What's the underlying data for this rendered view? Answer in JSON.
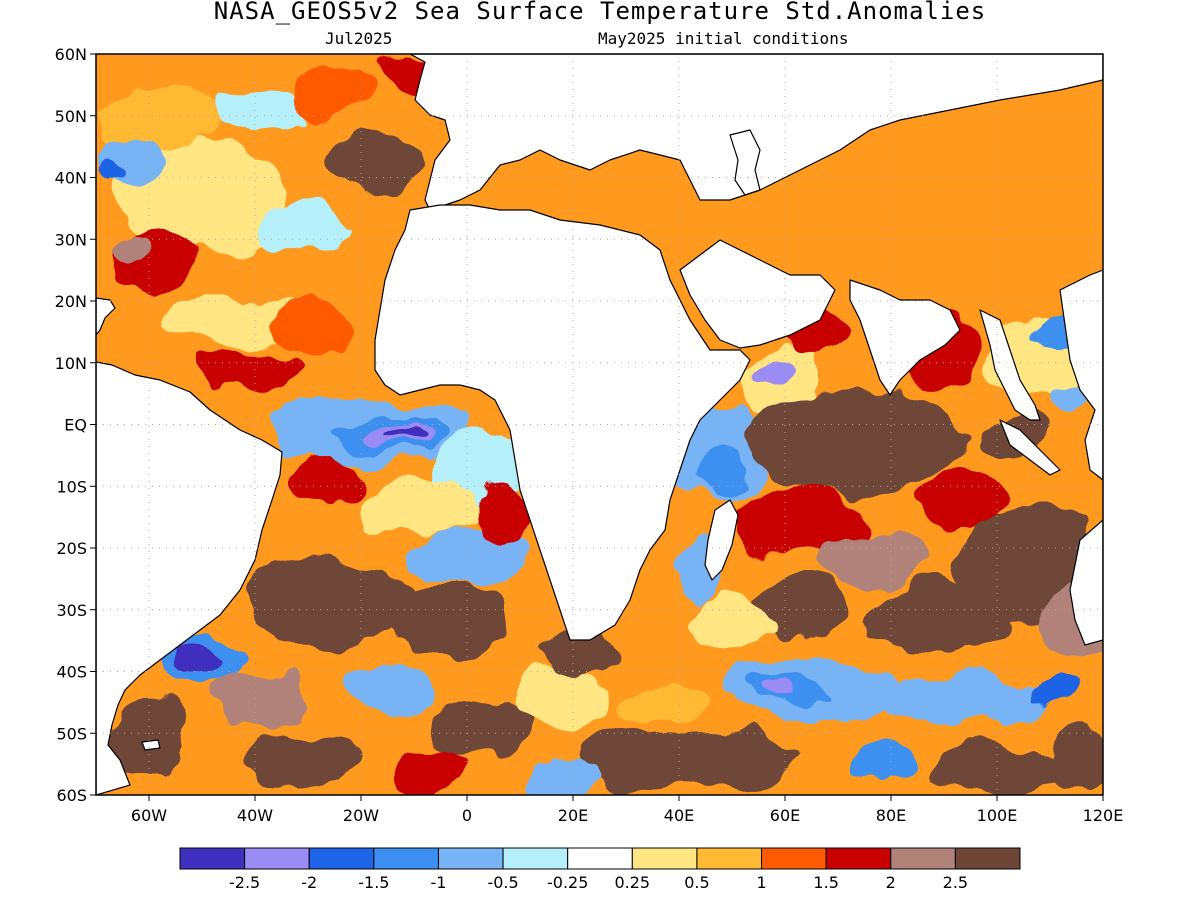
{
  "title": "NASA_GEOS5v2 Sea Surface Temperature Std.Anomalies",
  "subtitle_left": "Jul2025",
  "subtitle_right": "May2025 initial conditions",
  "map": {
    "lon_range": [
      -70,
      120
    ],
    "lat_range": [
      -60,
      60
    ],
    "lon_ticks": [
      {
        "v": -60,
        "label": "60W"
      },
      {
        "v": -40,
        "label": "40W"
      },
      {
        "v": -20,
        "label": "20W"
      },
      {
        "v": 0,
        "label": "0"
      },
      {
        "v": 20,
        "label": "20E"
      },
      {
        "v": 40,
        "label": "40E"
      },
      {
        "v": 60,
        "label": "60E"
      },
      {
        "v": 80,
        "label": "80E"
      },
      {
        "v": 100,
        "label": "100E"
      },
      {
        "v": 120,
        "label": "120E"
      }
    ],
    "lat_ticks": [
      {
        "v": 60,
        "label": "60N"
      },
      {
        "v": 50,
        "label": "50N"
      },
      {
        "v": 40,
        "label": "40N"
      },
      {
        "v": 30,
        "label": "30N"
      },
      {
        "v": 20,
        "label": "20N"
      },
      {
        "v": 10,
        "label": "10N"
      },
      {
        "v": 0,
        "label": "EQ"
      },
      {
        "v": -10,
        "label": "10S"
      },
      {
        "v": -20,
        "label": "20S"
      },
      {
        "v": -30,
        "label": "30S"
      },
      {
        "v": -40,
        "label": "40S"
      },
      {
        "v": -50,
        "label": "50S"
      },
      {
        "v": -60,
        "label": "60S"
      }
    ],
    "grid": "dotted"
  },
  "colorbar": {
    "colors": [
      "#3f2fbf",
      "#9b8cf5",
      "#1e64e6",
      "#3c8ff0",
      "#78b4f5",
      "#b4effa",
      "#ffffff",
      "#ffe682",
      "#ffb932",
      "#ff5a00",
      "#c80000",
      "#b0827a",
      "#6e4638"
    ],
    "labels": [
      "-2.5",
      "-2",
      "-1.5",
      "-1",
      "-0.5",
      "-0.25",
      "0.25",
      "0.5",
      "1",
      "1.5",
      "2",
      "2.5"
    ]
  },
  "colors": {
    "land": "#ffffff",
    "ocean_base": "#ff9a1f",
    "coast": "#000000"
  }
}
